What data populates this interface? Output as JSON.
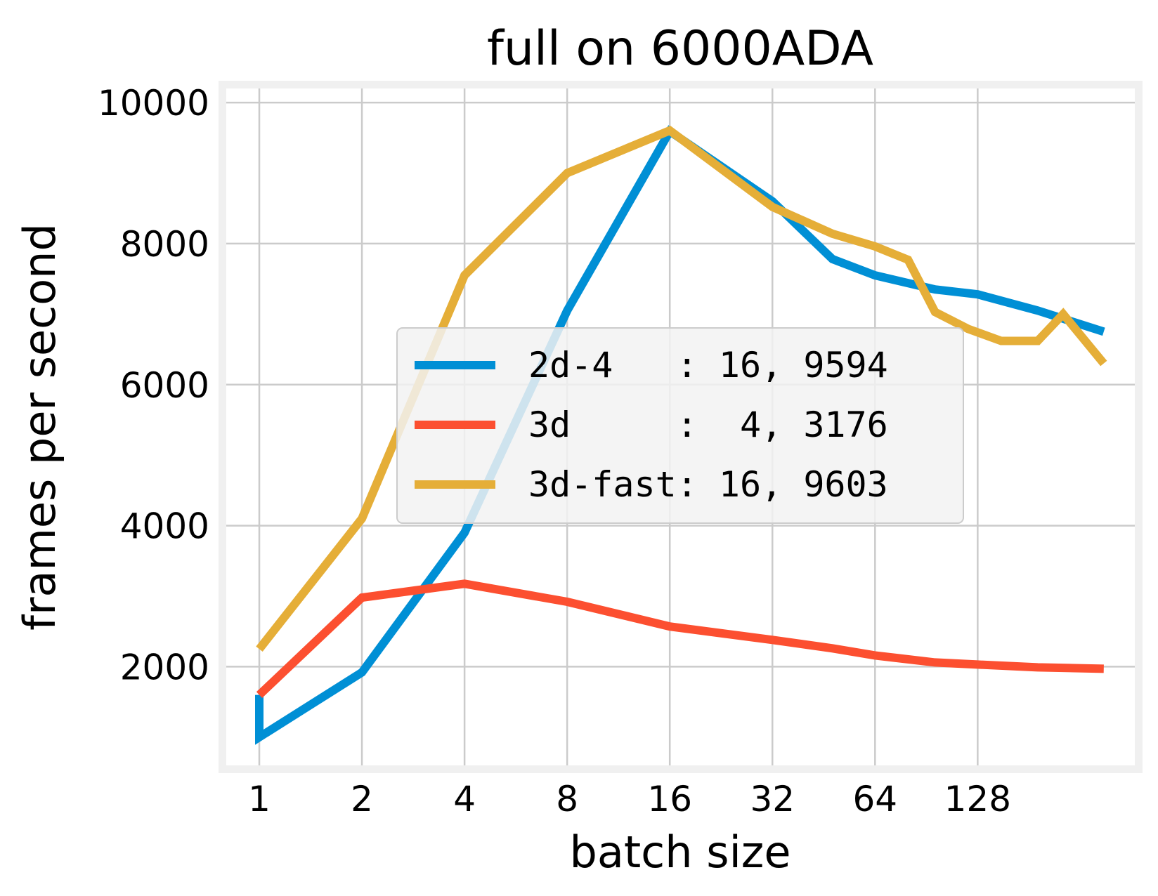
{
  "chart_data": {
    "type": "line",
    "title": "full on 6000ADA",
    "xlabel": "batch size",
    "ylabel": "frames per second",
    "x_scale": "log2",
    "x_ticks": [
      1,
      2,
      4,
      8,
      16,
      32,
      64,
      128
    ],
    "x_tick_labels": [
      "1",
      "2",
      "4",
      "8",
      "16",
      "32",
      "64",
      "128"
    ],
    "xlim": [
      0.8,
      370
    ],
    "y_ticks": [
      2000,
      4000,
      6000,
      8000,
      10000
    ],
    "y_tick_labels": [
      "2000",
      "4000",
      "6000",
      "8000",
      "10000"
    ],
    "ylim": [
      600,
      10200
    ],
    "grid": true,
    "legend_position": "center-right",
    "series": [
      {
        "name": "2d-4   : 16, 9594",
        "color": "#008fd5",
        "points": [
          [
            1,
            1600
          ],
          [
            1,
            1000
          ],
          [
            2,
            1920
          ],
          [
            4,
            3900
          ],
          [
            8,
            7050
          ],
          [
            16,
            9594
          ],
          [
            32,
            8600
          ],
          [
            48,
            7780
          ],
          [
            64,
            7550
          ],
          [
            96,
            7350
          ],
          [
            128,
            7280
          ],
          [
            192,
            7050
          ],
          [
            300,
            6750
          ]
        ]
      },
      {
        "name": "3d     :  4, 3176",
        "color": "#fc4f30",
        "points": [
          [
            1,
            1600
          ],
          [
            2,
            2980
          ],
          [
            4,
            3176
          ],
          [
            8,
            2920
          ],
          [
            16,
            2570
          ],
          [
            32,
            2380
          ],
          [
            48,
            2260
          ],
          [
            64,
            2160
          ],
          [
            96,
            2060
          ],
          [
            128,
            2030
          ],
          [
            192,
            1990
          ],
          [
            300,
            1970
          ]
        ]
      },
      {
        "name": "3d-fast: 16, 9603",
        "color": "#e5ae38",
        "points": [
          [
            1,
            2250
          ],
          [
            2,
            4100
          ],
          [
            4,
            7550
          ],
          [
            8,
            9000
          ],
          [
            16,
            9603
          ],
          [
            32,
            8520
          ],
          [
            48,
            8140
          ],
          [
            64,
            7960
          ],
          [
            80,
            7770
          ],
          [
            96,
            7030
          ],
          [
            120,
            6790
          ],
          [
            150,
            6620
          ],
          [
            192,
            6620
          ],
          [
            228,
            7000
          ],
          [
            300,
            6300
          ]
        ]
      }
    ]
  }
}
